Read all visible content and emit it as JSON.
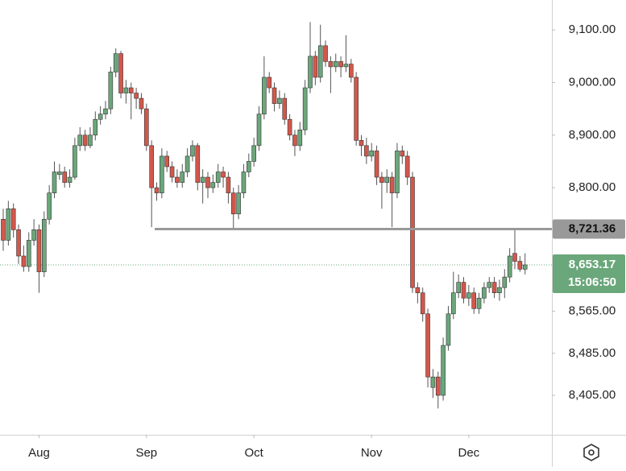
{
  "chart_data": {
    "type": "candlestick",
    "up_color": "#6aa77a",
    "down_color": "#d4574b",
    "ylim": [
      8330,
      9157
    ],
    "yticks": [
      {
        "value": 9100,
        "label": "9,100.00"
      },
      {
        "value": 9000,
        "label": "9,000.00"
      },
      {
        "value": 8900,
        "label": "8,900.00"
      },
      {
        "value": 8800,
        "label": "8,800.00"
      },
      {
        "value": 8565,
        "label": "8,565.00"
      },
      {
        "value": 8485,
        "label": "8,485.00"
      },
      {
        "value": 8405,
        "label": "8,405.00"
      }
    ],
    "xticks": [
      {
        "value": 7,
        "label": "Aug"
      },
      {
        "value": 28,
        "label": "Sep"
      },
      {
        "value": 49,
        "label": "Oct"
      },
      {
        "value": 72,
        "label": "Nov"
      },
      {
        "value": 91,
        "label": "Dec"
      }
    ],
    "level_line": {
      "value": 8721.36,
      "label": "8,721.36"
    },
    "last_price": {
      "value": 8653.17,
      "label": "8,653.17",
      "countdown": "15:06:50"
    },
    "candles": [
      [
        8740,
        8760,
        8680,
        8700
      ],
      [
        8700,
        8775,
        8690,
        8760
      ],
      [
        8760,
        8770,
        8705,
        8720
      ],
      [
        8720,
        8730,
        8655,
        8670
      ],
      [
        8670,
        8690,
        8640,
        8650
      ],
      [
        8650,
        8715,
        8640,
        8700
      ],
      [
        8700,
        8740,
        8690,
        8720
      ],
      [
        8720,
        8730,
        8600,
        8640
      ],
      [
        8640,
        8755,
        8630,
        8740
      ],
      [
        8740,
        8805,
        8730,
        8790
      ],
      [
        8790,
        8850,
        8780,
        8830
      ],
      [
        8825,
        8845,
        8815,
        8830
      ],
      [
        8830,
        8840,
        8800,
        8810
      ],
      [
        8810,
        8835,
        8800,
        8820
      ],
      [
        8820,
        8895,
        8815,
        8880
      ],
      [
        8880,
        8915,
        8870,
        8900
      ],
      [
        8900,
        8910,
        8870,
        8880
      ],
      [
        8880,
        8915,
        8875,
        8900
      ],
      [
        8900,
        8945,
        8890,
        8930
      ],
      [
        8930,
        8955,
        8920,
        8940
      ],
      [
        8940,
        8965,
        8930,
        8950
      ],
      [
        8950,
        9030,
        8940,
        9020
      ],
      [
        9020,
        9065,
        9010,
        9055
      ],
      [
        9055,
        9060,
        8970,
        8980
      ],
      [
        8980,
        9005,
        8960,
        8990
      ],
      [
        8990,
        9000,
        8930,
        8980
      ],
      [
        8980,
        8990,
        8950,
        8970
      ],
      [
        8970,
        8980,
        8940,
        8950
      ],
      [
        8950,
        8960,
        8870,
        8880
      ],
      [
        8880,
        8890,
        8725,
        8800
      ],
      [
        8800,
        8810,
        8775,
        8790
      ],
      [
        8790,
        8875,
        8780,
        8860
      ],
      [
        8860,
        8870,
        8830,
        8840
      ],
      [
        8840,
        8850,
        8810,
        8820
      ],
      [
        8820,
        8835,
        8800,
        8810
      ],
      [
        8810,
        8845,
        8800,
        8830
      ],
      [
        8830,
        8875,
        8820,
        8860
      ],
      [
        8860,
        8890,
        8850,
        8880
      ],
      [
        8880,
        8885,
        8795,
        8810
      ],
      [
        8810,
        8835,
        8770,
        8820
      ],
      [
        8820,
        8830,
        8780,
        8800
      ],
      [
        8800,
        8825,
        8790,
        8810
      ],
      [
        8810,
        8845,
        8800,
        8830
      ],
      [
        8830,
        8840,
        8800,
        8820
      ],
      [
        8820,
        8830,
        8770,
        8790
      ],
      [
        8790,
        8800,
        8722,
        8750
      ],
      [
        8750,
        8805,
        8740,
        8790
      ],
      [
        8790,
        8845,
        8780,
        8830
      ],
      [
        8830,
        8865,
        8820,
        8850
      ],
      [
        8850,
        8895,
        8840,
        8880
      ],
      [
        8880,
        8955,
        8870,
        8940
      ],
      [
        8940,
        9050,
        8930,
        9010
      ],
      [
        9010,
        9020,
        8980,
        8990
      ],
      [
        8990,
        9000,
        8945,
        8960
      ],
      [
        8960,
        8985,
        8950,
        8970
      ],
      [
        8970,
        8980,
        8920,
        8930
      ],
      [
        8930,
        8940,
        8890,
        8900
      ],
      [
        8900,
        8910,
        8860,
        8880
      ],
      [
        8880,
        8925,
        8870,
        8910
      ],
      [
        8910,
        9005,
        8900,
        8990
      ],
      [
        8990,
        9115,
        8980,
        9050
      ],
      [
        9050,
        9060,
        8995,
        9010
      ],
      [
        9010,
        9110,
        9000,
        9070
      ],
      [
        9070,
        9080,
        9030,
        9040
      ],
      [
        9040,
        9050,
        8980,
        9030
      ],
      [
        9030,
        9055,
        9020,
        9040
      ],
      [
        9040,
        9050,
        9010,
        9030
      ],
      [
        9030,
        9090,
        9020,
        9035
      ],
      [
        9035,
        9045,
        9000,
        9010
      ],
      [
        9010,
        9020,
        8880,
        8890
      ],
      [
        8890,
        8900,
        8860,
        8880
      ],
      [
        8880,
        8895,
        8845,
        8860
      ],
      [
        8860,
        8885,
        8850,
        8870
      ],
      [
        8870,
        8880,
        8805,
        8820
      ],
      [
        8820,
        8830,
        8760,
        8810
      ],
      [
        8810,
        8835,
        8790,
        8820
      ],
      [
        8820,
        8830,
        8725,
        8790
      ],
      [
        8790,
        8885,
        8780,
        8870
      ],
      [
        8870,
        8880,
        8845,
        8860
      ],
      [
        8860,
        8870,
        8805,
        8820
      ],
      [
        8820,
        8830,
        8600,
        8610
      ],
      [
        8610,
        8620,
        8580,
        8600
      ],
      [
        8600,
        8610,
        8545,
        8560
      ],
      [
        8560,
        8570,
        8420,
        8440
      ],
      [
        8420,
        8455,
        8400,
        8440
      ],
      [
        8440,
        8450,
        8380,
        8405
      ],
      [
        8405,
        8515,
        8395,
        8500
      ],
      [
        8500,
        8575,
        8490,
        8560
      ],
      [
        8560,
        8640,
        8550,
        8600
      ],
      [
        8600,
        8635,
        8590,
        8620
      ],
      [
        8620,
        8630,
        8580,
        8590
      ],
      [
        8590,
        8615,
        8575,
        8600
      ],
      [
        8600,
        8610,
        8560,
        8570
      ],
      [
        8570,
        8600,
        8560,
        8590
      ],
      [
        8590,
        8620,
        8580,
        8610
      ],
      [
        8610,
        8630,
        8600,
        8620
      ],
      [
        8620,
        8630,
        8590,
        8600
      ],
      [
        8600,
        8625,
        8585,
        8610
      ],
      [
        8610,
        8645,
        8590,
        8630
      ],
      [
        8630,
        8685,
        8620,
        8670
      ],
      [
        8675,
        8720,
        8645,
        8660
      ],
      [
        8660,
        8670,
        8640,
        8645
      ],
      [
        8645,
        8675,
        8635,
        8653.17
      ]
    ]
  }
}
